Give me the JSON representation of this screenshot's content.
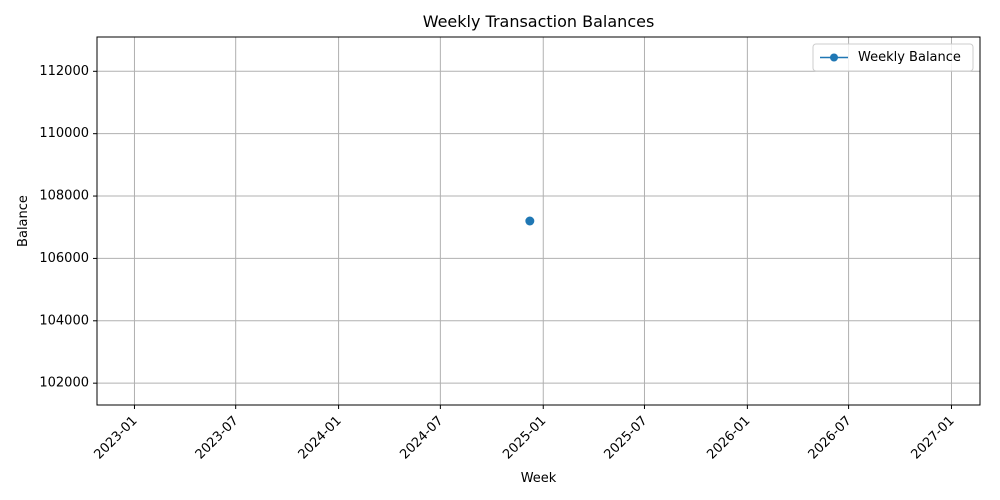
{
  "chart_data": {
    "type": "line",
    "title": "Weekly Transaction Balances",
    "xlabel": "Week",
    "ylabel": "Balance",
    "x_tick_labels": [
      "2023-01",
      "2023-07",
      "2024-01",
      "2024-07",
      "2025-01",
      "2025-07",
      "2026-01",
      "2026-07",
      "2027-01"
    ],
    "x_ticks": [
      "2023-01-01",
      "2023-07-01",
      "2024-01-01",
      "2024-07-01",
      "2025-01-01",
      "2025-07-01",
      "2026-01-01",
      "2026-07-01",
      "2027-01-01"
    ],
    "xlim": [
      "2022-10-26",
      "2027-02-21"
    ],
    "y_ticks": [
      102000,
      104000,
      106000,
      108000,
      110000,
      112000
    ],
    "y_tick_labels": [
      "102000",
      "104000",
      "106000",
      "108000",
      "110000",
      "112000"
    ],
    "ylim": [
      101300,
      113100
    ],
    "grid": true,
    "legend_position": "top-right",
    "series": [
      {
        "name": "Weekly Balance",
        "color": "#1f77b4",
        "marker": "circle",
        "points": [
          {
            "x": "2024-12-08",
            "y": 107200
          }
        ]
      }
    ]
  }
}
